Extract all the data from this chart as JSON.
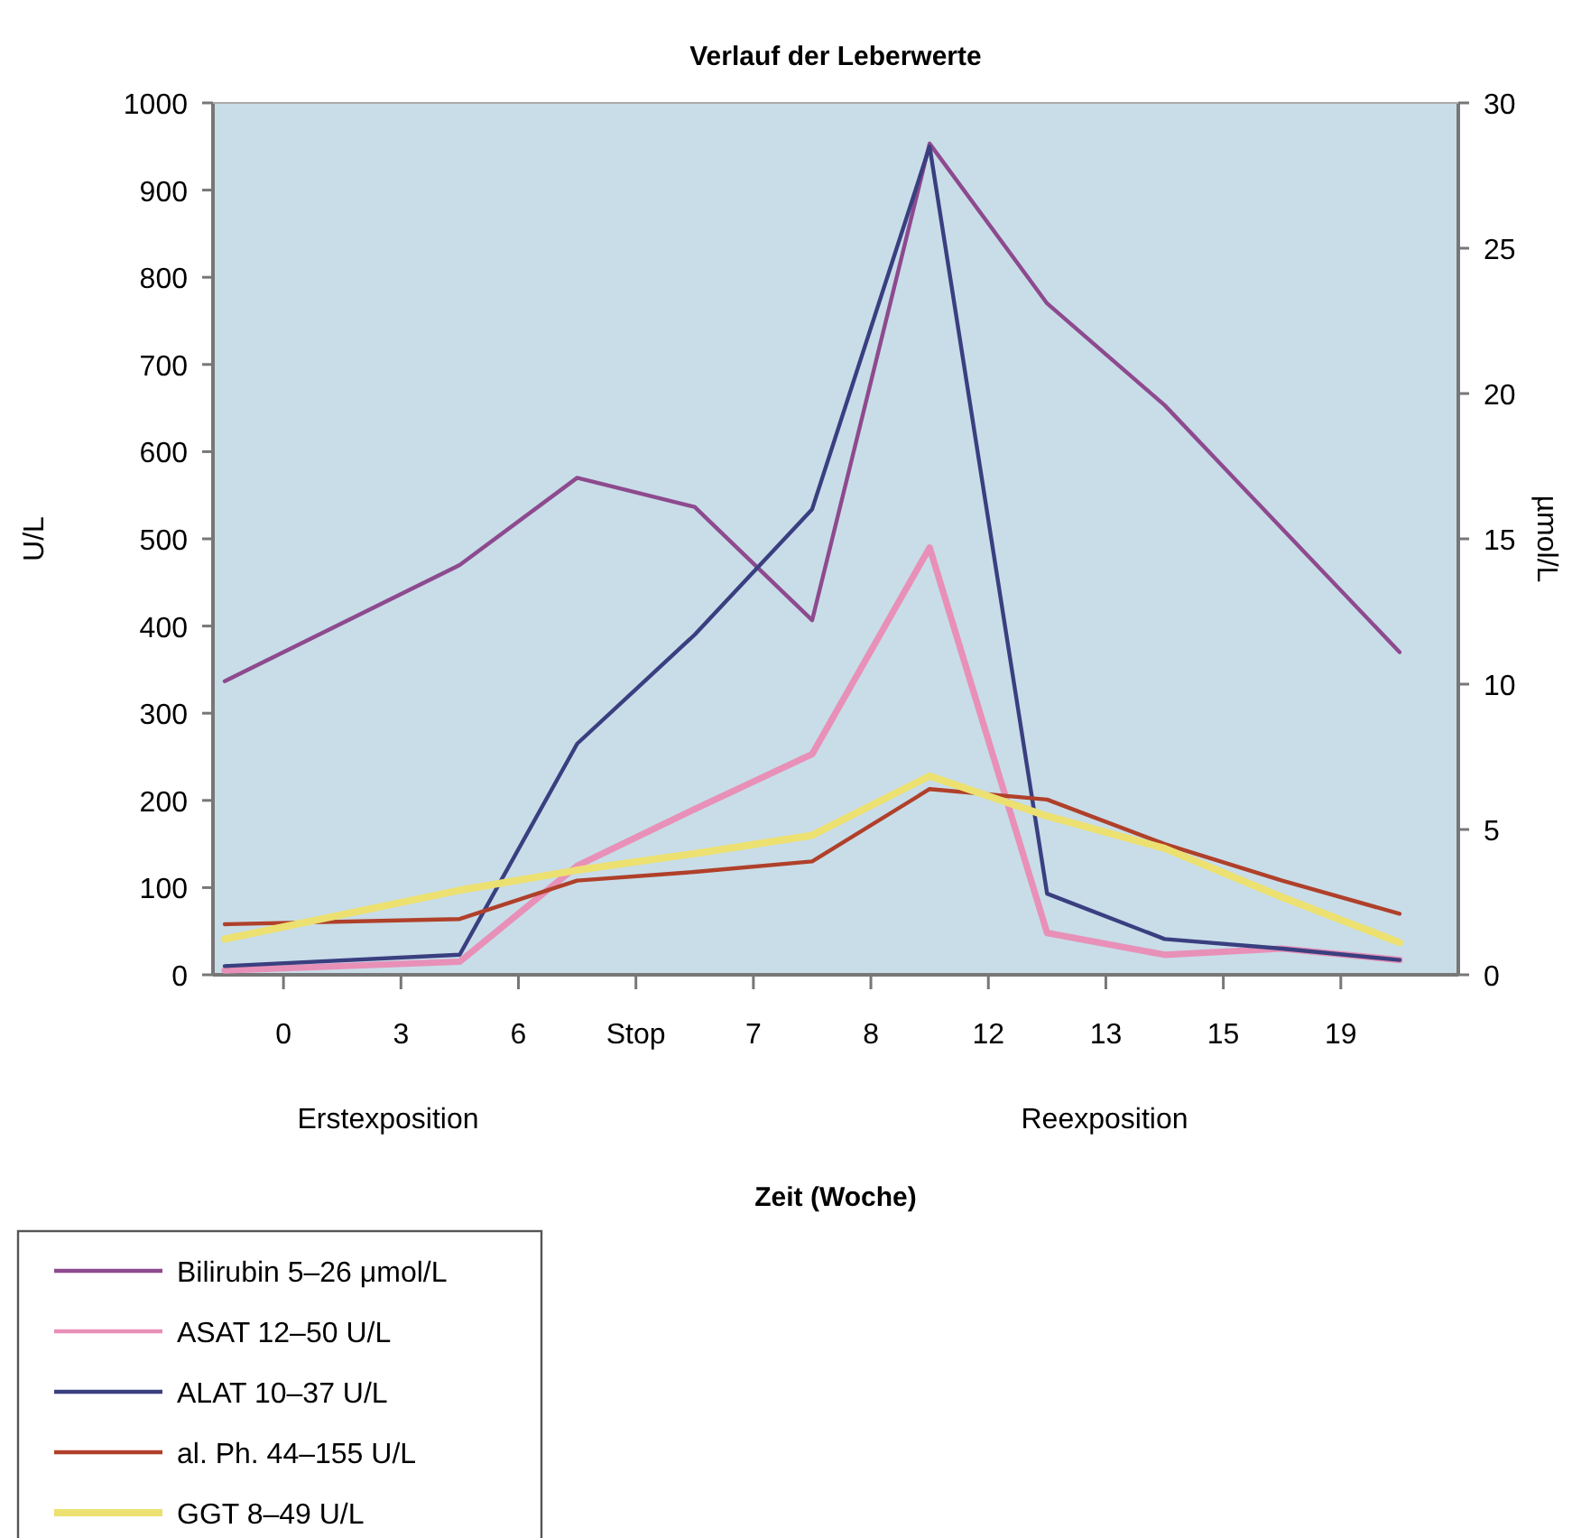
{
  "chart_data": {
    "type": "line",
    "title": "Verlauf der Leberwerte",
    "xlabel": "Zeit (Woche)",
    "ylabel": "U/L",
    "y2label": "µmol/L",
    "annotations": [
      "Erstexposition",
      "Reexposition"
    ],
    "categories": [
      null,
      "0",
      null,
      "3",
      null,
      "6",
      null,
      "Stop",
      null,
      "7",
      null,
      "8",
      null,
      "12",
      null,
      "13",
      null,
      "15",
      null,
      "19",
      null
    ],
    "ylim": [
      0,
      1000
    ],
    "yticks": [
      0,
      100,
      200,
      300,
      400,
      500,
      600,
      700,
      800,
      900,
      1000
    ],
    "y2lim": [
      0,
      30
    ],
    "y2ticks": [
      0,
      5,
      10,
      15,
      20,
      25,
      30
    ],
    "grid": false,
    "legend": "bottom left",
    "marker": "none",
    "line_style": "solid",
    "series": [
      {
        "name": "Bilirubin 5–26 μmol/L",
        "color": "#8e4a8e",
        "axis": "y2",
        "values": [
          10.1,
          null,
          null,
          null,
          14.1,
          null,
          17.1,
          null,
          16.1,
          null,
          12.2,
          null,
          28.6,
          null,
          23.1,
          null,
          19.6,
          null,
          null,
          null,
          11.1
        ]
      },
      {
        "name": "ASAT 12–50 U/L",
        "color": "#e890b8",
        "values": [
          5,
          null,
          null,
          null,
          15,
          null,
          125,
          null,
          190,
          null,
          253,
          null,
          490,
          null,
          48,
          null,
          23,
          null,
          30,
          null,
          17
        ]
      },
      {
        "name": "ALAT 10–37 U/L",
        "color": "#3a3f80",
        "values": [
          10,
          null,
          null,
          null,
          23,
          null,
          265,
          null,
          390,
          null,
          534,
          null,
          950,
          null,
          93,
          null,
          41,
          null,
          30,
          null,
          17
        ]
      },
      {
        "name": "al. Ph. 44–155 U/L",
        "color": "#b0402a",
        "values": [
          58,
          null,
          null,
          null,
          64,
          null,
          108,
          null,
          118,
          null,
          130,
          null,
          213,
          null,
          201,
          null,
          150,
          null,
          108,
          null,
          70
        ]
      },
      {
        "name": "GGT 8–49 U/L",
        "color": "#ece070",
        "values": [
          41,
          null,
          null,
          null,
          97,
          null,
          120,
          null,
          139,
          null,
          160,
          null,
          228,
          null,
          182,
          null,
          145,
          null,
          89,
          null,
          37
        ]
      }
    ]
  }
}
